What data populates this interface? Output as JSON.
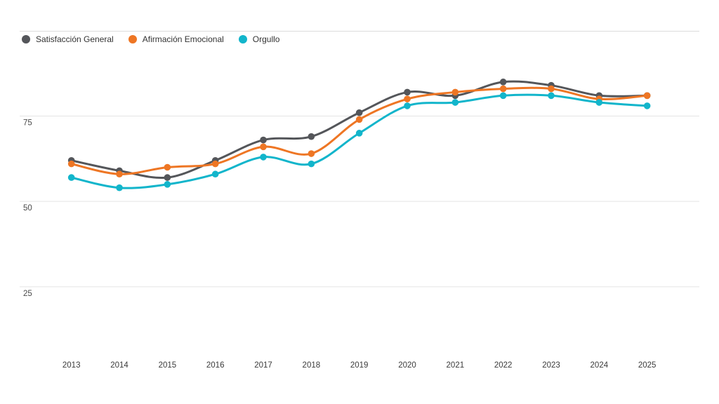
{
  "chart_data": {
    "type": "line",
    "title": "",
    "xlabel": "",
    "ylabel": "",
    "categories": [
      "2013",
      "2014",
      "2015",
      "2016",
      "2017",
      "2018",
      "2019",
      "2020",
      "2021",
      "2022",
      "2023",
      "2024",
      "2025"
    ],
    "series": [
      {
        "name": "Satisfacción General",
        "color": "#54565a",
        "values": [
          62,
          59,
          57,
          62,
          68,
          69,
          76,
          82,
          81,
          85,
          84,
          81,
          81
        ]
      },
      {
        "name": "Afirmación Emocional",
        "color": "#ee7624",
        "values": [
          61,
          58,
          60,
          61,
          66,
          64,
          74,
          80,
          82,
          83,
          83,
          80,
          81
        ]
      },
      {
        "name": "Orgullo",
        "color": "#12b5cb",
        "values": [
          57,
          54,
          55,
          58,
          63,
          61,
          70,
          78,
          79,
          81,
          81,
          79,
          78
        ]
      }
    ],
    "y_ticks": [
      75,
      50,
      25
    ],
    "ylim": [
      0,
      100
    ],
    "grid": true,
    "legend_position": "top-left",
    "line_style": "smooth",
    "markers": true
  },
  "legend": {
    "items": [
      {
        "label": "Satisfacción General"
      },
      {
        "label": "Afirmación Emocional"
      },
      {
        "label": "Orgullo"
      }
    ]
  },
  "colors": {
    "grid_line": "#e4e4e4",
    "top_rule": "#dcdcdc",
    "axis_tick_label": "#4a4a4a",
    "x_axis_label": "#3a3a3a"
  }
}
